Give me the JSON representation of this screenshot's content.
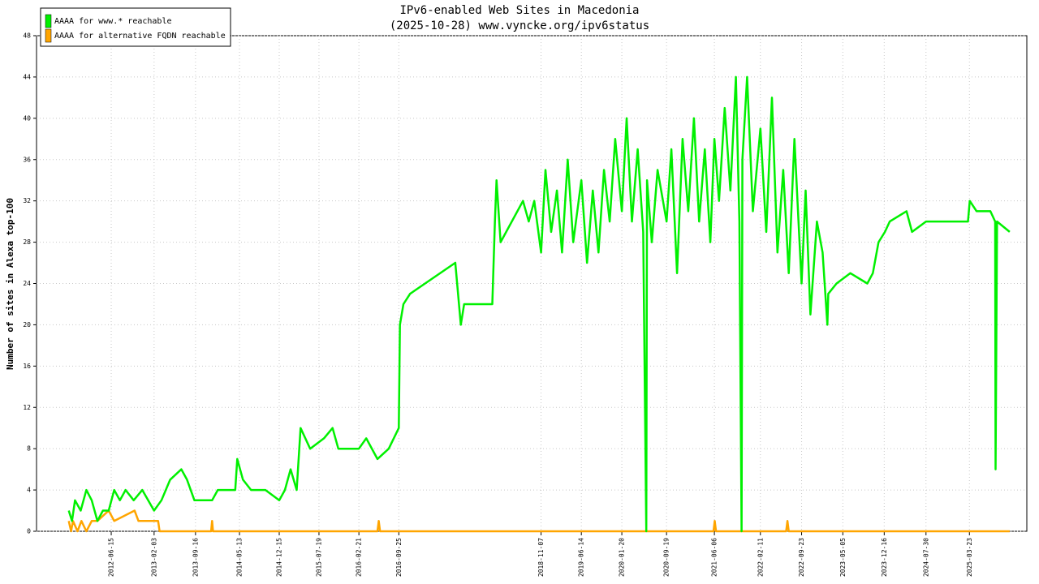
{
  "chart_data": {
    "type": "line",
    "title": "IPv6-enabled Web Sites in Macedonia",
    "subtitle": "(2025-10-28) www.vyncke.org/ipv6status",
    "ylabel": "Number of sites in Alexa top-100",
    "xlim": [
      "2011-05-06",
      "2026-01-29"
    ],
    "ylim": [
      0,
      48
    ],
    "yticks": [
      0,
      4,
      8,
      12,
      16,
      20,
      24,
      28,
      32,
      36,
      40,
      44,
      48
    ],
    "xticks": [
      "2012-06-15",
      "2013-02-03",
      "2013-09-16",
      "2014-05-13",
      "2014-12-15",
      "2015-07-19",
      "2016-02-21",
      "2016-09-25",
      "2018-11-07",
      "2019-06-14",
      "2020-01-20",
      "2020-09-19",
      "2021-06-06",
      "2022-02-11",
      "2022-09-23",
      "2023-05-05",
      "2023-12-16",
      "2024-07-30",
      "2025-03-23"
    ],
    "grid": true,
    "legend": "top-left",
    "series": [
      {
        "name": "AAAA for www.* reachable",
        "color": "#00f000",
        "x": [
          "2011-10-28",
          "2011-11-15",
          "2011-12-01",
          "2012-01-01",
          "2012-02-01",
          "2012-03-01",
          "2012-04-01",
          "2012-05-01",
          "2012-06-01",
          "2012-07-01",
          "2012-08-01",
          "2012-09-01",
          "2012-10-15",
          "2012-12-01",
          "2013-02-03",
          "2013-03-15",
          "2013-05-01",
          "2013-07-01",
          "2013-08-01",
          "2013-09-10",
          "2013-12-15",
          "2014-01-15",
          "2014-04-20",
          "2014-05-01",
          "2014-06-01",
          "2014-07-15",
          "2014-10-01",
          "2014-12-15",
          "2015-01-15",
          "2015-02-15",
          "2015-03-20",
          "2015-04-10",
          "2015-06-01",
          "2015-08-15",
          "2015-10-01",
          "2015-11-01",
          "2016-02-21",
          "2016-04-01",
          "2016-06-01",
          "2016-08-01",
          "2016-09-25",
          "2016-10-01",
          "2016-10-20",
          "2016-11-25",
          "2017-07-29",
          "2017-08-28",
          "2017-09-15",
          "2018-02-15",
          "2018-03-01",
          "2018-03-10",
          "2018-04-01",
          "2018-08-01",
          "2018-09-01",
          "2018-10-01",
          "2018-11-07",
          "2018-12-01",
          "2019-01-01",
          "2019-02-01",
          "2019-03-01",
          "2019-04-01",
          "2019-05-01",
          "2019-06-14",
          "2019-07-15",
          "2019-08-15",
          "2019-09-15",
          "2019-10-15",
          "2019-11-15",
          "2019-12-15",
          "2020-01-20",
          "2020-02-15",
          "2020-03-15",
          "2020-04-15",
          "2020-05-15",
          "2020-06-01",
          "2020-06-05",
          "2020-07-01",
          "2020-08-01",
          "2020-09-19",
          "2020-10-15",
          "2020-11-15",
          "2020-12-15",
          "2021-01-15",
          "2021-02-15",
          "2021-03-15",
          "2021-04-15",
          "2021-05-15",
          "2021-06-06",
          "2021-07-01",
          "2021-08-01",
          "2021-09-01",
          "2021-10-01",
          "2021-10-20",
          "2021-11-01",
          "2021-11-05",
          "2021-12-01",
          "2022-01-01",
          "2022-02-11",
          "2022-03-15",
          "2022-04-15",
          "2022-05-15",
          "2022-06-15",
          "2022-07-15",
          "2022-08-15",
          "2022-09-23",
          "2022-10-15",
          "2022-11-10",
          "2022-12-15",
          "2023-01-15",
          "2023-02-10",
          "2023-02-15",
          "2023-04-01",
          "2023-06-15",
          "2023-09-15",
          "2023-10-15",
          "2023-11-15",
          "2023-12-20",
          "2024-01-15",
          "2024-04-15",
          "2024-05-15",
          "2024-07-30",
          "2025-03-15",
          "2025-03-25",
          "2025-05-01",
          "2025-07-15",
          "2025-08-10",
          "2025-08-12",
          "2025-08-20",
          "2025-10-28"
        ],
        "values": [
          2,
          1,
          3,
          2,
          4,
          3,
          1,
          2,
          2,
          4,
          3,
          4,
          3,
          4,
          2,
          3,
          5,
          6,
          5,
          3,
          3,
          4,
          4,
          7,
          5,
          4,
          4,
          3,
          4,
          6,
          4,
          10,
          8,
          9,
          10,
          8,
          8,
          9,
          7,
          8,
          10,
          20,
          22,
          23,
          26,
          20,
          22,
          22,
          30,
          34,
          28,
          32,
          30,
          32,
          27,
          35,
          29,
          33,
          27,
          36,
          28,
          34,
          26,
          33,
          27,
          35,
          30,
          38,
          31,
          40,
          30,
          37,
          29,
          0,
          34,
          28,
          35,
          30,
          37,
          25,
          38,
          31,
          40,
          30,
          37,
          28,
          38,
          32,
          41,
          33,
          44,
          30,
          0,
          36,
          44,
          31,
          39,
          29,
          42,
          27,
          35,
          25,
          38,
          24,
          33,
          21,
          30,
          27,
          20,
          23,
          24,
          25,
          24,
          25,
          28,
          29,
          30,
          31,
          29,
          30,
          30,
          32,
          31,
          31,
          30,
          6,
          30,
          29
        ]
      },
      {
        "name": "AAAA for alternative FQDN reachable",
        "color": "#ffa500",
        "x": [
          "2011-10-28",
          "2011-11-10",
          "2011-11-20",
          "2011-12-15",
          "2012-01-05",
          "2012-02-01",
          "2012-03-01",
          "2012-04-01",
          "2012-06-01",
          "2012-07-01",
          "2012-10-20",
          "2012-11-10",
          "2012-12-01",
          "2013-02-25",
          "2013-03-05",
          "2013-12-10",
          "2013-12-15",
          "2013-12-20",
          "2016-06-01",
          "2016-06-08",
          "2016-06-15",
          "2021-06-01",
          "2021-06-08",
          "2021-06-15",
          "2022-07-01",
          "2022-07-08",
          "2022-07-15",
          "2025-10-28"
        ],
        "values": [
          1,
          0,
          1,
          0,
          1,
          0,
          1,
          1,
          2,
          1,
          2,
          1,
          1,
          1,
          0,
          0,
          1,
          0,
          0,
          1,
          0,
          0,
          1,
          0,
          0,
          1,
          0,
          0
        ]
      }
    ]
  }
}
